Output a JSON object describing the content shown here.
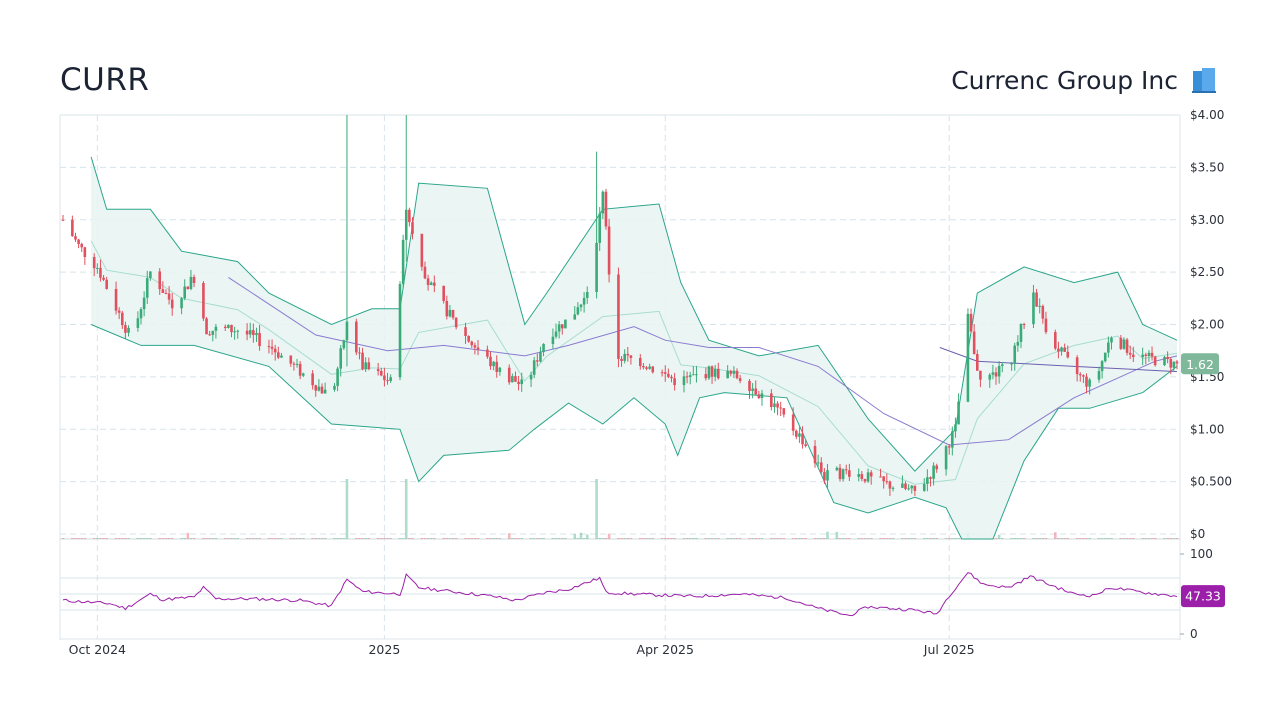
{
  "header": {
    "ticker": "CURR",
    "company_name": "Currenc Group Inc",
    "company_icon": "office-building-icon"
  },
  "colors": {
    "up": "#3aaa78",
    "down": "#e0505e",
    "band_line": "#2aa58a",
    "band_fill": "#e7f4f2",
    "band_mid": "#a8dccf",
    "ma": "#8a7ad0",
    "rsi": "#9b1fa8",
    "grid": "#d6e4ea",
    "price_badge": "#7fb89a"
  },
  "chart_data": [
    {
      "type": "candlestick",
      "title": "",
      "x_ticks": [
        "Oct 2024",
        "2025",
        "Apr 2025",
        "Jul 2025"
      ],
      "y_ticks": [
        "$0",
        "$0.500",
        "$1.00",
        "$1.50",
        "$2.00",
        "$2.50",
        "$3.00",
        "$3.50",
        "$4.00"
      ],
      "ylim": [
        0,
        4.0
      ],
      "x_range": [
        "2024-09-20",
        "2025-09-12"
      ],
      "grid": true,
      "last_price": "1.62",
      "indicators": [
        "Bollinger Bands (20, 2)",
        "Moving Average",
        "Volume"
      ],
      "price_keypoints": [
        [
          "2024-09-20",
          3.0
        ],
        [
          "2024-09-25",
          2.75
        ],
        [
          "2024-10-01",
          2.55
        ],
        [
          "2024-10-08",
          2.1
        ],
        [
          "2024-10-12",
          1.85
        ],
        [
          "2024-10-18",
          2.5
        ],
        [
          "2024-10-25",
          2.2
        ],
        [
          "2024-11-01",
          2.45
        ],
        [
          "2024-11-05",
          1.95
        ],
        [
          "2024-11-15",
          1.95
        ],
        [
          "2024-11-25",
          1.8
        ],
        [
          "2024-12-05",
          1.55
        ],
        [
          "2024-12-15",
          1.3
        ],
        [
          "2024-12-20",
          2.0
        ],
        [
          "2024-12-25",
          1.6
        ],
        [
          "2025-01-03",
          1.45
        ],
        [
          "2025-01-08",
          3.1
        ],
        [
          "2025-01-15",
          2.4
        ],
        [
          "2025-01-25",
          1.95
        ],
        [
          "2025-02-05",
          1.6
        ],
        [
          "2025-02-15",
          1.4
        ],
        [
          "2025-02-22",
          1.9
        ],
        [
          "2025-03-01",
          2.05
        ],
        [
          "2025-03-08",
          2.3
        ],
        [
          "2025-03-12",
          3.3
        ],
        [
          "2025-03-16",
          1.7
        ],
        [
          "2025-03-24",
          1.65
        ],
        [
          "2025-04-05",
          1.45
        ],
        [
          "2025-04-15",
          1.55
        ],
        [
          "2025-04-25",
          1.5
        ],
        [
          "2025-05-05",
          1.25
        ],
        [
          "2025-05-15",
          0.9
        ],
        [
          "2025-05-22",
          0.55
        ],
        [
          "2025-05-30",
          0.6
        ],
        [
          "2025-06-08",
          0.5
        ],
        [
          "2025-06-20",
          0.4
        ],
        [
          "2025-06-27",
          0.65
        ],
        [
          "2025-07-03",
          1.0
        ],
        [
          "2025-07-07",
          2.05
        ],
        [
          "2025-07-11",
          1.45
        ],
        [
          "2025-07-20",
          1.6
        ],
        [
          "2025-07-28",
          2.3
        ],
        [
          "2025-08-02",
          1.9
        ],
        [
          "2025-08-10",
          1.55
        ],
        [
          "2025-08-16",
          1.4
        ],
        [
          "2025-08-22",
          1.9
        ],
        [
          "2025-08-30",
          1.7
        ],
        [
          "2025-09-12",
          1.62
        ]
      ],
      "bollinger_upper_keypoints": [
        [
          "2024-09-29",
          3.6
        ],
        [
          "2024-10-04",
          3.1
        ],
        [
          "2024-10-18",
          3.1
        ],
        [
          "2024-10-28",
          2.7
        ],
        [
          "2024-11-15",
          2.6
        ],
        [
          "2024-11-25",
          2.3
        ],
        [
          "2024-12-15",
          2.0
        ],
        [
          "2024-12-28",
          2.15
        ],
        [
          "2025-01-06",
          2.15
        ],
        [
          "2025-01-12",
          3.35
        ],
        [
          "2025-02-03",
          3.3
        ],
        [
          "2025-02-15",
          2.0
        ],
        [
          "2025-02-22",
          2.3
        ],
        [
          "2025-03-12",
          3.1
        ],
        [
          "2025-03-30",
          3.15
        ],
        [
          "2025-04-06",
          2.4
        ],
        [
          "2025-04-15",
          1.85
        ],
        [
          "2025-05-01",
          1.7
        ],
        [
          "2025-05-20",
          1.8
        ],
        [
          "2025-06-05",
          1.1
        ],
        [
          "2025-06-20",
          0.6
        ],
        [
          "2025-07-03",
          1.0
        ],
        [
          "2025-07-10",
          2.3
        ],
        [
          "2025-07-25",
          2.55
        ],
        [
          "2025-08-10",
          2.4
        ],
        [
          "2025-08-24",
          2.5
        ],
        [
          "2025-09-01",
          2.0
        ],
        [
          "2025-09-12",
          1.85
        ]
      ],
      "bollinger_lower_keypoints": [
        [
          "2024-09-29",
          2.0
        ],
        [
          "2024-10-15",
          1.8
        ],
        [
          "2024-11-01",
          1.8
        ],
        [
          "2024-11-25",
          1.6
        ],
        [
          "2024-12-15",
          1.05
        ],
        [
          "2025-01-06",
          1.0
        ],
        [
          "2025-01-12",
          0.5
        ],
        [
          "2025-01-20",
          0.75
        ],
        [
          "2025-02-10",
          0.8
        ],
        [
          "2025-02-18",
          1.0
        ],
        [
          "2025-03-01",
          1.25
        ],
        [
          "2025-03-12",
          1.05
        ],
        [
          "2025-03-22",
          1.3
        ],
        [
          "2025-04-01",
          1.05
        ],
        [
          "2025-04-05",
          0.75
        ],
        [
          "2025-04-12",
          1.3
        ],
        [
          "2025-04-20",
          1.35
        ],
        [
          "2025-05-10",
          1.3
        ],
        [
          "2025-05-25",
          0.3
        ],
        [
          "2025-06-05",
          0.2
        ],
        [
          "2025-06-20",
          0.35
        ],
        [
          "2025-06-30",
          0.25
        ],
        [
          "2025-07-05",
          -0.1
        ],
        [
          "2025-07-15",
          -0.1
        ],
        [
          "2025-07-25",
          0.7
        ],
        [
          "2025-08-05",
          1.2
        ],
        [
          "2025-08-15",
          1.2
        ],
        [
          "2025-09-01",
          1.35
        ],
        [
          "2025-09-12",
          1.6
        ]
      ],
      "ma_keypoints": [
        [
          "2024-11-12",
          2.45
        ],
        [
          "2024-12-10",
          1.9
        ],
        [
          "2025-01-02",
          1.75
        ],
        [
          "2025-01-20",
          1.8
        ],
        [
          "2025-02-15",
          1.7
        ],
        [
          "2025-03-01",
          1.8
        ],
        [
          "2025-03-22",
          1.98
        ],
        [
          "2025-04-01",
          1.85
        ],
        [
          "2025-04-15",
          1.78
        ],
        [
          "2025-05-01",
          1.78
        ],
        [
          "2025-05-20",
          1.6
        ],
        [
          "2025-06-10",
          1.15
        ],
        [
          "2025-07-01",
          0.85
        ],
        [
          "2025-07-20",
          0.9
        ],
        [
          "2025-08-10",
          1.3
        ],
        [
          "2025-09-05",
          1.65
        ],
        [
          "2025-09-12",
          1.7
        ]
      ],
      "ma2_keypoints": [
        [
          "2025-06-28",
          1.78
        ],
        [
          "2025-07-10",
          1.65
        ],
        [
          "2025-08-10",
          1.6
        ],
        [
          "2025-09-12",
          1.55
        ]
      ]
    },
    {
      "type": "line",
      "title": "",
      "y_ticks": [
        "0",
        "100"
      ],
      "ylim": [
        0,
        100
      ],
      "grid_levels": [
        30,
        50,
        70
      ],
      "last_value": "47.33",
      "rsi_keypoints": [
        [
          "2024-09-20",
          42
        ],
        [
          "2024-10-05",
          38
        ],
        [
          "2024-10-10",
          32
        ],
        [
          "2024-10-18",
          50
        ],
        [
          "2024-10-22",
          43
        ],
        [
          "2024-11-01",
          46
        ],
        [
          "2024-11-04",
          58
        ],
        [
          "2024-11-08",
          44
        ],
        [
          "2024-11-20",
          44
        ],
        [
          "2024-12-05",
          42
        ],
        [
          "2024-12-15",
          35
        ],
        [
          "2024-12-20",
          68
        ],
        [
          "2024-12-25",
          53
        ],
        [
          "2025-01-06",
          50
        ],
        [
          "2025-01-08",
          73
        ],
        [
          "2025-01-12",
          58
        ],
        [
          "2025-02-05",
          47
        ],
        [
          "2025-02-12",
          42
        ],
        [
          "2025-02-22",
          52
        ],
        [
          "2025-03-01",
          56
        ],
        [
          "2025-03-11",
          70
        ],
        [
          "2025-03-13",
          52
        ],
        [
          "2025-03-22",
          50
        ],
        [
          "2025-04-10",
          47
        ],
        [
          "2025-04-25",
          50
        ],
        [
          "2025-05-10",
          45
        ],
        [
          "2025-05-20",
          32
        ],
        [
          "2025-05-30",
          23
        ],
        [
          "2025-06-05",
          34
        ],
        [
          "2025-06-20",
          30
        ],
        [
          "2025-06-27",
          25
        ],
        [
          "2025-07-01",
          48
        ],
        [
          "2025-07-07",
          77
        ],
        [
          "2025-07-12",
          62
        ],
        [
          "2025-07-20",
          58
        ],
        [
          "2025-07-27",
          72
        ],
        [
          "2025-08-02",
          62
        ],
        [
          "2025-08-10",
          50
        ],
        [
          "2025-08-16",
          48
        ],
        [
          "2025-08-22",
          58
        ],
        [
          "2025-09-01",
          52
        ],
        [
          "2025-09-12",
          47.33
        ]
      ]
    }
  ]
}
